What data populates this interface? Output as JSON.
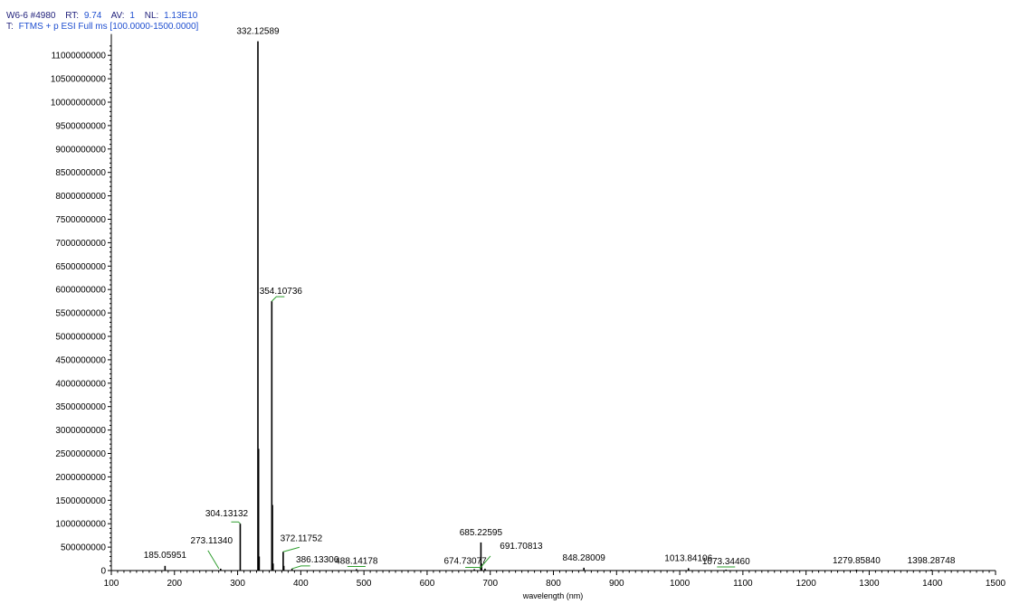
{
  "header": {
    "line1": {
      "scan": "W6-6 #4980",
      "rt_label": "RT:",
      "rt_value": "9.74",
      "av_label": "AV:",
      "av_value": "1",
      "nl_label": "NL:",
      "nl_value": "1.13E10"
    },
    "line2": {
      "filter_label": "T:",
      "filter_value": "FTMS + p ESI Full ms [100.0000-1500.0000]"
    }
  },
  "colors": {
    "axis": "#000000",
    "spectrum": "#000000",
    "leader_line": "#2e9e2e",
    "header_label": "#1f1f7a",
    "header_value": "#1f4fd0"
  },
  "chart_data": {
    "type": "bar",
    "xlabel": "wavelength (nm)",
    "ylabel": "",
    "xlim": [
      100,
      1500
    ],
    "ylim": [
      0,
      11300000000
    ],
    "x_ticks": [
      100,
      200,
      300,
      400,
      500,
      600,
      700,
      800,
      900,
      1000,
      1100,
      1200,
      1300,
      1400,
      1500
    ],
    "y_ticks": [
      0,
      500000000,
      1000000000,
      1500000000,
      2000000000,
      2500000000,
      3000000000,
      3500000000,
      4000000000,
      4500000000,
      5000000000,
      5500000000,
      6000000000,
      6500000000,
      7000000000,
      7500000000,
      8000000000,
      8500000000,
      9000000000,
      9500000000,
      10000000000,
      10500000000,
      11000000000
    ],
    "grid": false,
    "peaks": [
      {
        "x": 185.05951,
        "y": 100000000,
        "label": "185.05951"
      },
      {
        "x": 273.1134,
        "y": 40000000,
        "label": "273.11340"
      },
      {
        "x": 304.13132,
        "y": 1000000000,
        "label": "304.13132"
      },
      {
        "x": 332.12589,
        "y": 11300000000,
        "label": "332.12589"
      },
      {
        "x": 333.129,
        "y": 2600000000,
        "label": ""
      },
      {
        "x": 334.123,
        "y": 300000000,
        "label": ""
      },
      {
        "x": 354.10736,
        "y": 5750000000,
        "label": "354.10736"
      },
      {
        "x": 355.11,
        "y": 1400000000,
        "label": ""
      },
      {
        "x": 356.105,
        "y": 150000000,
        "label": ""
      },
      {
        "x": 372.11752,
        "y": 400000000,
        "label": "372.11752"
      },
      {
        "x": 373.12,
        "y": 100000000,
        "label": ""
      },
      {
        "x": 386.13306,
        "y": 40000000,
        "label": "386.13306"
      },
      {
        "x": 488.14178,
        "y": 30000000,
        "label": "488.14178"
      },
      {
        "x": 674.73077,
        "y": 30000000,
        "label": "674.73077"
      },
      {
        "x": 685.22595,
        "y": 600000000,
        "label": "685.22595"
      },
      {
        "x": 686.229,
        "y": 150000000,
        "label": ""
      },
      {
        "x": 691.70813,
        "y": 40000000,
        "label": "691.70813"
      },
      {
        "x": 848.28009,
        "y": 60000000,
        "label": "848.28009"
      },
      {
        "x": 1013.84106,
        "y": 50000000,
        "label": "1013.84106"
      },
      {
        "x": 1073.3446,
        "y": 20000000,
        "label": "1073.34460"
      },
      {
        "x": 1279.8584,
        "y": 10000000,
        "label": "1279.85840"
      },
      {
        "x": 1398.28748,
        "y": 10000000,
        "label": "1398.28748"
      }
    ]
  }
}
